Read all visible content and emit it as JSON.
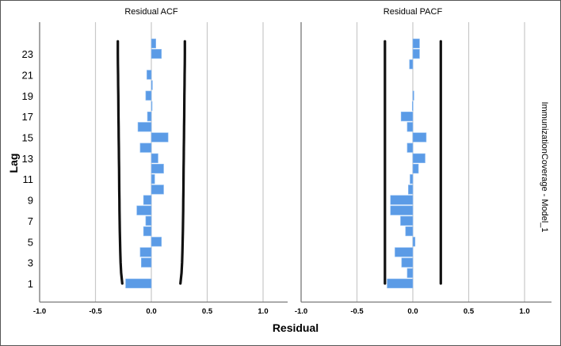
{
  "chart_data": [
    {
      "type": "bar",
      "orientation": "horizontal",
      "title": "Residual ACF",
      "xlabel": "Residual",
      "ylabel": "Lag",
      "xlim": [
        -1.0,
        1.0
      ],
      "xticks": [
        "-1.0",
        "-0.5",
        "0.0",
        "0.5",
        "1.0"
      ],
      "xtick_values": [
        -1.0,
        -0.5,
        0.0,
        0.5,
        1.0
      ],
      "lags": [
        1,
        2,
        3,
        4,
        5,
        6,
        7,
        8,
        9,
        10,
        11,
        12,
        13,
        14,
        15,
        16,
        17,
        18,
        19,
        20,
        21,
        22,
        23,
        24
      ],
      "ytick_labels": [
        "1",
        "3",
        "5",
        "7",
        "9",
        "11",
        "13",
        "15",
        "17",
        "19",
        "21",
        "23"
      ],
      "values": [
        -0.23,
        0.0,
        -0.09,
        -0.1,
        0.09,
        -0.07,
        -0.05,
        -0.13,
        -0.07,
        0.11,
        0.03,
        0.11,
        0.06,
        -0.1,
        0.15,
        -0.12,
        -0.035,
        0.005,
        -0.05,
        0.01,
        -0.04,
        0.0,
        0.09,
        0.04
      ],
      "confidence_upper": [
        0.26,
        0.27,
        0.275,
        0.278,
        0.28,
        0.282,
        0.284,
        0.285,
        0.286,
        0.287,
        0.288,
        0.289,
        0.29,
        0.291,
        0.292,
        0.293,
        0.294,
        0.295,
        0.296,
        0.297,
        0.298,
        0.299,
        0.3,
        0.3
      ],
      "confidence_lower": [
        -0.26,
        -0.27,
        -0.275,
        -0.278,
        -0.28,
        -0.282,
        -0.284,
        -0.285,
        -0.286,
        -0.287,
        -0.288,
        -0.289,
        -0.29,
        -0.291,
        -0.292,
        -0.293,
        -0.294,
        -0.295,
        -0.296,
        -0.297,
        -0.298,
        -0.299,
        -0.3,
        -0.3
      ],
      "grid": true,
      "bar_color": "#5b9be6"
    },
    {
      "type": "bar",
      "orientation": "horizontal",
      "title": "Residual PACF",
      "xlabel": "Residual",
      "ylabel": "Lag",
      "xlim": [
        -1.0,
        1.0
      ],
      "xticks": [
        "-1.0",
        "-0.5",
        "0.0",
        "0.5",
        "1.0"
      ],
      "xtick_values": [
        -1.0,
        -0.5,
        0.0,
        0.5,
        1.0
      ],
      "lags": [
        1,
        2,
        3,
        4,
        5,
        6,
        7,
        8,
        9,
        10,
        11,
        12,
        13,
        14,
        15,
        16,
        17,
        18,
        19,
        20,
        21,
        22,
        23,
        24
      ],
      "values": [
        -0.23,
        -0.05,
        -0.1,
        -0.16,
        0.02,
        -0.065,
        -0.11,
        -0.2,
        -0.2,
        -0.04,
        -0.025,
        0.05,
        0.11,
        -0.05,
        0.12,
        -0.05,
        -0.105,
        -0.005,
        0.01,
        0.0,
        0.0,
        -0.03,
        0.06,
        0.06
      ],
      "confidence_upper": [
        0.25,
        0.25,
        0.25,
        0.25,
        0.25,
        0.25,
        0.25,
        0.25,
        0.25,
        0.25,
        0.25,
        0.25,
        0.25,
        0.25,
        0.25,
        0.25,
        0.25,
        0.25,
        0.25,
        0.25,
        0.25,
        0.25,
        0.25,
        0.25
      ],
      "confidence_lower": [
        -0.25,
        -0.25,
        -0.25,
        -0.25,
        -0.25,
        -0.25,
        -0.25,
        -0.25,
        -0.25,
        -0.25,
        -0.25,
        -0.25,
        -0.25,
        -0.25,
        -0.25,
        -0.25,
        -0.25,
        -0.25,
        -0.25,
        -0.25,
        -0.25,
        -0.25,
        -0.25,
        -0.25
      ],
      "grid": true,
      "bar_color": "#5b9be6"
    }
  ],
  "shared": {
    "xlabel": "Residual",
    "ylabel": "Lag",
    "row_label": "ImmunizationCoverage - Model_1"
  }
}
